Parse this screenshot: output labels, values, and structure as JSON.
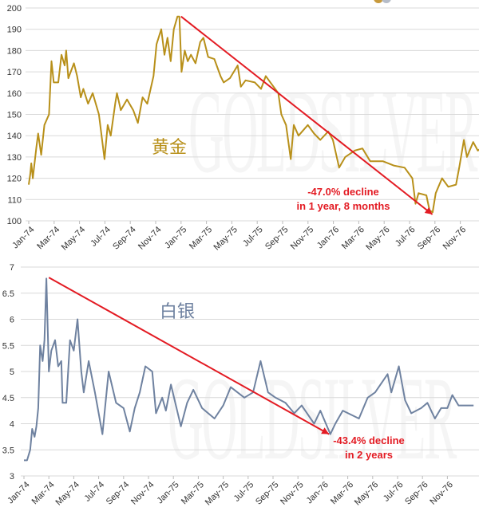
{
  "chart_data": [
    {
      "type": "line",
      "name": "gold",
      "series_label": "黄金",
      "color": "#b8901a",
      "x_unit": "months since Jan-74",
      "xlim": [
        0,
        35.3
      ],
      "ylim": [
        100,
        200
      ],
      "yticks": [
        100,
        110,
        120,
        130,
        140,
        150,
        160,
        170,
        180,
        190,
        200
      ],
      "xtick_labels": [
        "Jan-74",
        "Mar-74",
        "May-74",
        "Jul-74",
        "Sep-74",
        "Nov-74",
        "Jan-75",
        "Mar-75",
        "May-75",
        "Jul-75",
        "Sep-75",
        "Nov-75",
        "Jan-76",
        "Mar-76",
        "May-76",
        "Jul-76",
        "Sep-76",
        "Nov-76"
      ],
      "grid": true,
      "x": [
        0,
        0.12,
        0.2,
        0.32,
        0.61,
        0.74,
        0.98,
        1.23,
        1.6,
        1.79,
        1.97,
        2.33,
        2.58,
        2.83,
        2.95,
        3.12,
        3.56,
        3.81,
        4.1,
        4.3,
        4.67,
        5.04,
        5.53,
        5.97,
        6.22,
        6.46,
        6.81,
        6.95,
        7.25,
        7.74,
        8.23,
        8.6,
        8.97,
        9.34,
        9.83,
        10.07,
        10.44,
        10.69,
        10.93,
        11.18,
        11.43,
        11.72,
        11.87,
        12.04,
        12.29,
        12.53,
        12.78,
        13.14,
        13.51,
        13.76,
        14.13,
        14.62,
        15.11,
        15.36,
        15.85,
        16.46,
        16.71,
        17.08,
        17.81,
        18.3,
        18.67,
        19.04,
        19.66,
        19.9,
        20.27,
        20.64,
        20.88,
        21.25,
        21.99,
        22.48,
        22.97,
        23.59,
        23.96,
        24.45,
        24.94,
        25.68,
        26.29,
        26.9,
        27.89,
        28.75,
        29.61,
        30.22,
        30.47,
        30.71,
        31.33,
        31.57,
        31.82,
        32.06,
        32.56,
        33.05,
        33.66,
        33.91,
        34.28,
        34.52,
        35.01,
        35.38,
        35.87
      ],
      "y": [
        117,
        122,
        127,
        120,
        135,
        141,
        131,
        145,
        150,
        175,
        165,
        165,
        178,
        173,
        180,
        167,
        174,
        168,
        158,
        162,
        155,
        160,
        150,
        129,
        145,
        140,
        155,
        160,
        152,
        157,
        152,
        146,
        158,
        155,
        168,
        183,
        190,
        178,
        186,
        175,
        190,
        196,
        196,
        170,
        180,
        175,
        178,
        174,
        184,
        186,
        177,
        176,
        168,
        165,
        167,
        173,
        163,
        166,
        165,
        162,
        168,
        165,
        160,
        150,
        145,
        129,
        145,
        140,
        145,
        141,
        138,
        142,
        138,
        125,
        130,
        133,
        134,
        128,
        128,
        126,
        125,
        120,
        108,
        113,
        112,
        105,
        104,
        113,
        120,
        116,
        117,
        125,
        138,
        130,
        137,
        133,
        135
      ],
      "trend_arrow": {
        "from": [
          12.0,
          196
        ],
        "to": [
          31.8,
          103
        ]
      },
      "annotation": [
        "-47.0% decline",
        "in 1 year, 8 months"
      ]
    },
    {
      "type": "line",
      "name": "silver",
      "series_label": "白银",
      "color": "#6f82a0",
      "x_unit": "months since Jan-74",
      "xlim": [
        0,
        36.1
      ],
      "ylim": [
        3,
        7
      ],
      "yticks": [
        3,
        3.5,
        4,
        4.5,
        5,
        5.5,
        6,
        6.5,
        7
      ],
      "xtick_labels": [
        "Jan-74",
        "Mar-74",
        "May-74",
        "Jul-74",
        "Sep-74",
        "Nov-74",
        "Jan-75",
        "Mar-75",
        "May-75",
        "Jul-75",
        "Sep-75",
        "Nov-75",
        "Jan-76",
        "Mar-76",
        "May-76",
        "Jul-76",
        "Sep-76",
        "Nov-76"
      ],
      "grid": true,
      "x": [
        0,
        0.25,
        0.5,
        0.66,
        0.85,
        1.0,
        1.15,
        1.3,
        1.5,
        1.65,
        1.8,
        2.0,
        2.2,
        2.5,
        2.75,
        3.0,
        3.1,
        3.4,
        3.7,
        4.0,
        4.3,
        4.6,
        4.8,
        5.2,
        5.7,
        6.3,
        6.8,
        7.4,
        8.0,
        8.5,
        8.9,
        9.3,
        9.75,
        10.3,
        10.6,
        11.1,
        11.4,
        11.8,
        12.6,
        13.1,
        13.6,
        14.3,
        15.3,
        16.0,
        16.6,
        17.7,
        18.4,
        19.0,
        19.6,
        20.2,
        21.0,
        21.7,
        22.3,
        23.3,
        23.8,
        24.6,
        25.0,
        25.6,
        26.9,
        27.6,
        28.2,
        29.2,
        29.5,
        30.1,
        30.6,
        31.1,
        31.9,
        32.4,
        33.0,
        33.5,
        34.0,
        34.4,
        34.9,
        35.5,
        36.1
      ],
      "y": [
        3.3,
        3.3,
        3.5,
        3.9,
        3.75,
        3.95,
        4.3,
        5.5,
        5.2,
        5.6,
        6.78,
        5.0,
        5.4,
        5.6,
        5.1,
        5.2,
        4.4,
        4.4,
        5.6,
        5.4,
        6.0,
        5.0,
        4.6,
        5.2,
        4.6,
        3.8,
        5.0,
        4.4,
        4.3,
        3.85,
        4.3,
        4.6,
        5.1,
        5.0,
        4.2,
        4.5,
        4.25,
        4.75,
        3.95,
        4.4,
        4.65,
        4.3,
        4.1,
        4.35,
        4.7,
        4.5,
        4.6,
        5.2,
        4.6,
        4.5,
        4.4,
        4.2,
        4.35,
        4.0,
        4.25,
        3.8,
        4.0,
        4.25,
        4.1,
        4.5,
        4.6,
        4.95,
        4.6,
        5.1,
        4.45,
        4.2,
        4.3,
        4.4,
        4.1,
        4.3,
        4.3,
        4.55,
        4.35,
        4.35,
        4.35
      ],
      "trend_arrow": {
        "from": [
          2.0,
          6.8
        ],
        "to": [
          24.5,
          3.8
        ]
      },
      "annotation": [
        "-43.4% decline",
        "in 2 years"
      ]
    }
  ],
  "watermark": "GOLDSILVER",
  "colors": {
    "arrow": "#e31b23",
    "grid": "#d9d9d9"
  }
}
